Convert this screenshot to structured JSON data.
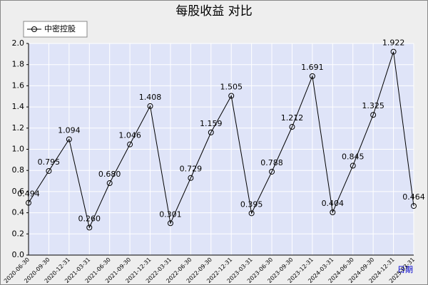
{
  "chart_data": {
    "type": "line",
    "title": "每股收益 对比",
    "categories": [
      "2020-06-30",
      "2020-09-30",
      "2020-12-31",
      "2021-03-31",
      "2021-06-30",
      "2021-09-30",
      "2021-12-31",
      "2022-03-31",
      "2022-06-30",
      "2022-09-30",
      "2022-12-31",
      "2023-03-31",
      "2023-06-30",
      "2023-09-30",
      "2023-12-31",
      "2024-03-31",
      "2024-06-30",
      "2024-09-30",
      "2024-12-31",
      "2025-03-31"
    ],
    "x_label": "日期",
    "series": [
      {
        "name": "中密控股",
        "color": "#000000",
        "values": [
          0.494,
          0.795,
          1.094,
          0.26,
          0.68,
          1.046,
          1.408,
          0.301,
          0.729,
          1.159,
          1.505,
          0.395,
          0.788,
          1.212,
          1.691,
          0.404,
          0.845,
          1.325,
          1.922,
          0.464
        ],
        "value_labels": [
          "0.494",
          "0.795",
          "1.094",
          "0.260",
          "0.680",
          "1.046",
          "1.408",
          "0.301",
          "0.729",
          "1.159",
          "1.505",
          "0.395",
          "0.788",
          "1.212",
          "1.691",
          "0.404",
          "0.845",
          "1.325",
          "1.922",
          "0.464"
        ]
      }
    ],
    "ylim": [
      0,
      2.0
    ],
    "yticks": [
      {
        "value": 0,
        "label": "0.0"
      },
      0.2,
      0.4,
      0.6,
      0.8,
      {
        "value": 1,
        "label": "1.0"
      },
      1.2,
      1.4,
      1.6,
      1.8,
      {
        "value": 2,
        "label": "2.0"
      }
    ],
    "grid": true,
    "legend": "top-left"
  }
}
